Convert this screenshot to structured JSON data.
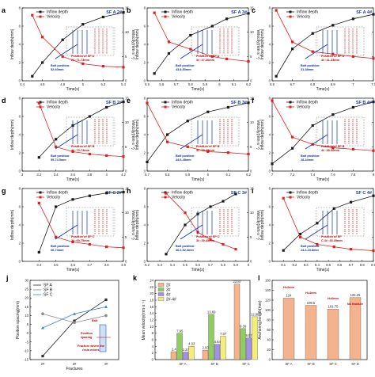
{
  "chart_data": [
    {
      "id": "a",
      "type": "line",
      "title": "SF A 2#",
      "x": [
        4.5,
        4.6,
        4.8,
        5.0,
        5.2,
        5.4
      ],
      "xlim": [
        4.4,
        5.4
      ],
      "xticks": [
        4.4,
        4.6,
        4.8,
        5.0,
        5.2,
        5.4
      ],
      "ylim_left": [
        0,
        8
      ],
      "ylim_right": [
        0,
        15
      ],
      "xlabel": "Time(s)",
      "ylabel_left": "Inflow depth(mm)",
      "ylabel_right": "Velocity(mm·s⁻¹)",
      "series": [
        {
          "name": "Inflow depth",
          "axis": "left",
          "values": [
            0.5,
            2.0,
            4.5,
            6.2,
            7.0,
            7.5
          ]
        },
        {
          "name": "Velocity",
          "axis": "right",
          "values": [
            13.5,
            9.0,
            5.0,
            3.5,
            3.0,
            2.8
          ]
        }
      ],
      "annotations": [
        {
          "text": "Position of SF A",
          "color": "red"
        },
        {
          "text": "2# :71-73mm",
          "color": "red"
        },
        {
          "text": "Bolt position:",
          "color": "blue"
        },
        {
          "text": "52-60mm",
          "color": "blue"
        }
      ]
    },
    {
      "id": "b",
      "type": "line",
      "title": "SF A 3#",
      "x": [
        5.55,
        5.65,
        5.8,
        5.95,
        6.05,
        6.2
      ],
      "xlim": [
        5.5,
        6.2
      ],
      "xticks": [
        5.5,
        5.6,
        5.7,
        5.8,
        5.9,
        6.0,
        6.1,
        6.2
      ],
      "ylim_left": [
        0,
        8
      ],
      "ylim_right": [
        0,
        15
      ],
      "xlabel": "Time(s)",
      "ylabel_left": "Inflow depth(mm)",
      "ylabel_right": "Velocity(mm·s⁻¹)",
      "series": [
        {
          "name": "Inflow depth",
          "axis": "left",
          "values": [
            0.8,
            3.0,
            5.0,
            6.0,
            6.8,
            7.4
          ]
        },
        {
          "name": "Velocity",
          "axis": "right",
          "values": [
            14.0,
            8.0,
            6.5,
            5.0,
            4.5,
            4.0
          ]
        }
      ],
      "annotations": [
        {
          "text": "Bolt position:",
          "color": "blue"
        },
        {
          "text": "43.8-50mm",
          "color": "blue"
        },
        {
          "text": "Position of SF A",
          "color": "red"
        },
        {
          "text": "3# :37-40mm",
          "color": "red"
        }
      ]
    },
    {
      "id": "c",
      "type": "line",
      "title": "SF A 4#",
      "x": [
        6.62,
        6.7,
        6.8,
        6.9,
        7.0,
        7.1
      ],
      "xlim": [
        6.6,
        7.1
      ],
      "xticks": [
        6.6,
        6.7,
        6.8,
        6.9,
        7.0,
        7.1
      ],
      "ylim_left": [
        0,
        8
      ],
      "ylim_right": [
        0,
        15
      ],
      "xlabel": "Time(s)",
      "ylabel_left": "Inflow depth(mm)",
      "ylabel_right": "Velocity(mm·s⁻¹)",
      "series": [
        {
          "name": "Inflow depth",
          "axis": "left",
          "values": [
            0.5,
            3.5,
            5.2,
            6.1,
            6.8,
            7.3
          ]
        },
        {
          "name": "Velocity",
          "axis": "right",
          "values": [
            14.5,
            8.0,
            6.0,
            5.5,
            5.0,
            4.6
          ]
        }
      ],
      "annotations": [
        {
          "text": "Position of SF A",
          "color": "red"
        },
        {
          "text": "4# :31-33mm",
          "color": "red"
        },
        {
          "text": "Bolt position:",
          "color": "blue"
        },
        {
          "text": "31-38mm",
          "color": "blue"
        }
      ]
    },
    {
      "id": "d",
      "type": "line",
      "title": "SF B 2#",
      "x": [
        3.2,
        3.4,
        3.6,
        3.8,
        4.0,
        4.2
      ],
      "xlim": [
        3.0,
        4.2
      ],
      "xticks": [
        3.0,
        3.2,
        3.4,
        3.6,
        3.8,
        4.0,
        4.2
      ],
      "ylim_left": [
        0,
        8
      ],
      "ylim_right": [
        0,
        15
      ],
      "xlabel": "Time(s)",
      "ylabel_left": "Inflow depth(mm)",
      "ylabel_right": "Velocity(mm·s⁻¹)",
      "series": [
        {
          "name": "Inflow depth",
          "axis": "left",
          "values": [
            1.5,
            3.5,
            5.0,
            6.0,
            7.0,
            7.6
          ]
        },
        {
          "name": "Velocity",
          "axis": "right",
          "values": [
            14.0,
            5.0,
            4.0,
            3.5,
            3.2,
            3.0
          ]
        }
      ],
      "annotations": [
        {
          "text": "Position of SF B",
          "color": "red"
        },
        {
          "text": "2# :70-74mm",
          "color": "red"
        },
        {
          "text": "Bolt position:",
          "color": "blue"
        },
        {
          "text": "59-74.5mm",
          "color": "blue"
        }
      ]
    },
    {
      "id": "e",
      "type": "line",
      "title": "SF B 3#",
      "x": [
        5.7,
        5.8,
        5.9,
        6.0,
        6.1,
        6.2
      ],
      "xlim": [
        5.7,
        6.2
      ],
      "xticks": [
        5.7,
        5.8,
        5.9,
        6.0,
        6.1,
        6.2
      ],
      "ylim_left": [
        0,
        8
      ],
      "ylim_right": [
        0,
        15
      ],
      "xlabel": "Time(s)",
      "ylabel_left": "Inflow depth(mm)",
      "ylabel_right": "Velocity(mm·s⁻¹)",
      "series": [
        {
          "name": "Inflow depth",
          "axis": "left",
          "values": [
            1.0,
            4.0,
            5.5,
            6.5,
            7.0,
            7.5
          ]
        },
        {
          "name": "Velocity",
          "axis": "right",
          "values": [
            14.0,
            6.0,
            5.0,
            4.0,
            3.8,
            3.5
          ]
        }
      ],
      "annotations": [
        {
          "text": "Bolt position:",
          "color": "blue"
        },
        {
          "text": "44.6-48mm",
          "color": "blue"
        },
        {
          "text": "Position of SF B",
          "color": "red"
        },
        {
          "text": "3# :39-45mm",
          "color": "red"
        }
      ]
    },
    {
      "id": "f",
      "type": "line",
      "title": "SF B 4#",
      "x": [
        7.0,
        7.2,
        7.4,
        7.6,
        7.8,
        8.0
      ],
      "xlim": [
        7.0,
        8.0
      ],
      "xticks": [
        7.0,
        7.2,
        7.4,
        7.6,
        7.8,
        8.0
      ],
      "ylim_left": [
        0,
        8
      ],
      "ylim_right": [
        0,
        15
      ],
      "xlabel": "Time(s)",
      "ylabel_left": "Inflow depth(mm)",
      "ylabel_right": "Velocity(mm·s⁻¹)",
      "series": [
        {
          "name": "Inflow depth",
          "axis": "left",
          "values": [
            0.8,
            2.5,
            5.0,
            6.2,
            7.0,
            7.6
          ]
        },
        {
          "name": "Velocity",
          "axis": "right",
          "values": [
            14.5,
            7.0,
            5.5,
            4.8,
            4.5,
            4.2
          ]
        }
      ],
      "annotations": [
        {
          "text": "Bolt position:",
          "color": "blue"
        },
        {
          "text": "28-34mm",
          "color": "blue"
        },
        {
          "text": "Position of SF B",
          "color": "red"
        },
        {
          "text": "4# :38-40mm",
          "color": "red"
        }
      ]
    },
    {
      "id": "g",
      "type": "line",
      "title": "SF C 2#",
      "x": [
        3.4,
        3.5,
        3.6,
        3.7,
        3.8,
        3.9
      ],
      "xlim": [
        3.3,
        3.9
      ],
      "xticks": [
        3.4,
        3.5,
        3.6,
        3.7,
        3.8,
        3.9
      ],
      "ylim_left": [
        0,
        8
      ],
      "ylim_right": [
        0,
        15
      ],
      "xlabel": "Time(s)",
      "ylabel_left": "Inflow depth(mm)",
      "ylabel_right": "Velocity(mm·s⁻¹)",
      "series": [
        {
          "name": "Inflow depth",
          "axis": "left",
          "values": [
            1.0,
            6.0,
            6.8,
            7.2,
            7.5,
            7.6
          ]
        },
        {
          "name": "Velocity",
          "axis": "right",
          "values": [
            12.0,
            5.0,
            4.0,
            3.5,
            3.0,
            2.8
          ]
        }
      ],
      "annotations": [
        {
          "text": "Position of SF C",
          "color": "red"
        },
        {
          "text": "2# :69-75mm",
          "color": "red"
        },
        {
          "text": "Bolt position:",
          "color": "blue"
        },
        {
          "text": "66-74mm",
          "color": "blue"
        }
      ]
    },
    {
      "id": "h",
      "type": "line",
      "title": "SF C 3#",
      "x": [
        5.35,
        5.5,
        5.6,
        5.7,
        5.8,
        5.9
      ],
      "xlim": [
        5.2,
        6.0
      ],
      "xticks": [
        5.2,
        5.3,
        5.4,
        5.5,
        5.6,
        5.7,
        5.8,
        5.9,
        6.0
      ],
      "ylim_left": [
        0,
        8
      ],
      "ylim_right": [
        0,
        15
      ],
      "xlabel": "Time(s)",
      "ylabel_left": "Inflow depth(mm)",
      "ylabel_right": "Velocity(mm·s⁻¹)",
      "series": [
        {
          "name": "Inflow depth",
          "axis": "left",
          "values": [
            0.8,
            4.0,
            5.2,
            6.0,
            6.6,
            7.4
          ]
        },
        {
          "name": "Velocity",
          "axis": "right",
          "values": [
            14.0,
            10.0,
            6.0,
            4.5,
            3.5,
            2.5
          ]
        }
      ],
      "annotations": [
        {
          "text": "Position of SF C",
          "color": "red"
        },
        {
          "text": "3# :39-45mm",
          "color": "red"
        },
        {
          "text": "Bolt position:",
          "color": "blue"
        },
        {
          "text": "46.2-52.4mm",
          "color": "blue"
        }
      ]
    },
    {
      "id": "i",
      "type": "line",
      "title": "SF C 4#",
      "x": [
        8.1,
        8.25,
        8.4,
        8.55,
        8.7,
        8.9
      ],
      "xlim": [
        8.0,
        8.9
      ],
      "xticks": [
        8.1,
        8.2,
        8.3,
        8.4,
        8.5,
        8.6,
        8.7,
        8.8,
        8.9
      ],
      "ylim_left": [
        0,
        8
      ],
      "ylim_right": [
        0,
        15
      ],
      "xlabel": "Time(s)",
      "ylabel_left": "Inflow depth(mm)",
      "ylabel_right": "Velocity(mm·s⁻¹)",
      "series": [
        {
          "name": "Inflow depth",
          "axis": "left",
          "values": [
            1.2,
            3.0,
            4.2,
            5.8,
            6.5,
            7.2
          ]
        },
        {
          "name": "Velocity",
          "axis": "right",
          "values": [
            13.0,
            5.0,
            3.5,
            3.0,
            2.5,
            2.2
          ]
        }
      ],
      "annotations": [
        {
          "text": "Bolt position:",
          "color": "blue"
        },
        {
          "text": "24.2-23.8mm",
          "color": "blue"
        },
        {
          "text": "Position of SF",
          "color": "red"
        },
        {
          "text": "C 4# :35-39mm",
          "color": "red"
        }
      ]
    },
    {
      "id": "j",
      "type": "line",
      "categories": [
        "2#",
        "3#",
        "4#"
      ],
      "xlabel": "Fractures",
      "ylabel": "Position spacing(mm)",
      "ylim": [
        -15,
        30
      ],
      "yticks": [
        -15,
        -10,
        -5,
        0,
        5,
        10,
        15,
        20,
        25,
        30
      ],
      "series": [
        {
          "name": "SF A",
          "values": [
            -13,
            7,
            19
          ]
        },
        {
          "name": "SF B",
          "values": [
            11,
            6,
            10
          ]
        },
        {
          "name": "SF C",
          "values": [
            3,
            11,
            15
          ]
        }
      ],
      "annotations": [
        "Bolt",
        "Position",
        "spacing",
        "Fracture where the",
        "resin enters"
      ]
    },
    {
      "id": "k",
      "type": "bar",
      "categories": [
        "SF A",
        "SF B",
        "SF C"
      ],
      "ylabel": "Mean velocity(mm·s⁻¹)",
      "ylim": [
        0,
        24
      ],
      "yticks": [
        0,
        2,
        4,
        6,
        8,
        10,
        12,
        14,
        16,
        18,
        20,
        22,
        24
      ],
      "series": [
        {
          "name": "2#",
          "values": [
            2.4,
            2.83,
            22.87
          ]
        },
        {
          "name": "3#",
          "values": [
            7.95,
            13.69,
            9.39
          ]
        },
        {
          "name": "4#",
          "values": [
            2.27,
            4.64,
            6.57
          ]
        },
        {
          "name": "2#-4#",
          "values": [
            4.03,
            7.07,
            12.98
          ]
        }
      ],
      "data_labels": [
        [
          "2.4",
          "7.95",
          "2.27",
          "4.03"
        ],
        [
          "2.83",
          "13.69",
          "4.64",
          "7.07"
        ],
        [
          "22.87",
          "9.39",
          "6.57",
          "12.98"
        ]
      ]
    },
    {
      "id": "l",
      "type": "bar",
      "categories": [
        "SF A",
        "SF B",
        "SF C",
        "SF D"
      ],
      "ylabel": "Anchoring length(mm)",
      "ylim": [
        0,
        160
      ],
      "yticks": [
        0,
        20,
        40,
        60,
        80,
        100,
        120,
        140,
        160
      ],
      "values": [
        124,
        109.5,
        101.75,
        125.25
      ],
      "data_labels": [
        "124",
        "109.5",
        "101.75",
        "125.25"
      ],
      "annotations": [
        "H=2mm",
        "H=4mm",
        "H=6mm",
        "No fracture"
      ]
    }
  ],
  "colors": {
    "inflow": "#1a1a1a",
    "velocity": "#e02020",
    "bolt_line": "#1230b5",
    "fracture_line": "#c80000",
    "sfa": "#2a2a2a",
    "sfb": "#8a8a8a",
    "sfc": "#3b82d6",
    "bar_2": "#f7b48b",
    "bar_3": "#8fcd62",
    "bar_4": "#a392e4",
    "bar_24": "#f2ee78",
    "bar_l": "#f3b38f"
  }
}
